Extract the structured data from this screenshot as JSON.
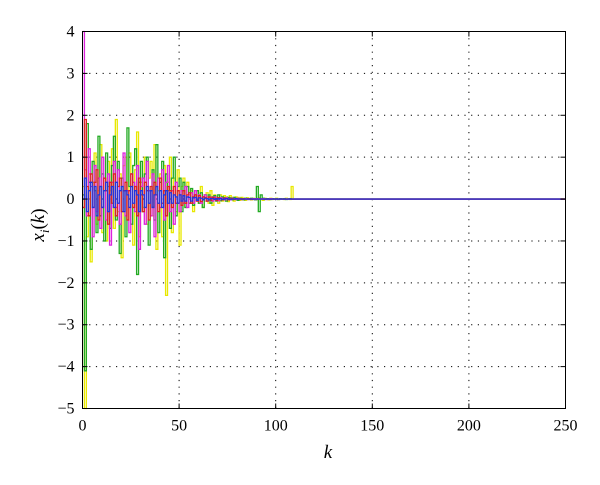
{
  "chart_data": {
    "type": "line",
    "step": true,
    "xlabel": "k",
    "ylabel": "x_i(k)",
    "xlim": [
      0,
      250
    ],
    "ylim": [
      -5,
      4
    ],
    "xticks": [
      0,
      50,
      100,
      150,
      200,
      250
    ],
    "yticks": [
      -5,
      -4,
      -3,
      -2,
      -1,
      0,
      1,
      2,
      3,
      4
    ],
    "grid": true,
    "series": [
      {
        "color": "#e8e800",
        "values": [
          0.3,
          -5.0,
          -0.9,
          0.6,
          -1.5,
          0.4,
          1.1,
          -0.6,
          0.2,
          1.3,
          -0.8,
          0.5,
          -1.0,
          0.9,
          0.2,
          1.2,
          -0.7,
          1.9,
          -0.3,
          0.6,
          -1.4,
          0.8,
          1.0,
          -0.5,
          1.1,
          0.3,
          -1.1,
          0.7,
          1.6,
          -0.9,
          0.4,
          -0.2,
          1.0,
          -0.6,
          0.5,
          0.9,
          -0.4,
          1.3,
          -1.2,
          0.2,
          0.6,
          -0.9,
          0.8,
          -2.3,
          0.4,
          1.0,
          -0.8,
          0.5,
          -0.3,
          0.7,
          -1.1,
          0.3,
          0.5,
          -0.2,
          0.4,
          -0.1,
          0.2,
          -0.3,
          0.1,
          0.2,
          -0.1,
          0.3,
          -0.2,
          0.1,
          0.15,
          -0.1,
          0.2,
          -0.15,
          0.1,
          0.05,
          -0.1,
          0.1,
          -0.05,
          0.08,
          0.05,
          -0.06,
          0.08,
          0.04,
          -0.05,
          0.05,
          0.04,
          -0.03,
          0.04,
          0.02,
          -0.03,
          0.03,
          0.01,
          -0.02,
          0.02,
          0.01,
          -0.02,
          0.03,
          0.01,
          -0.03,
          0.02,
          0.01,
          -0.02,
          0.02,
          -0.01,
          0.01,
          0.02,
          -0.01,
          0.01,
          0.01,
          -0.01,
          0.02,
          0.01,
          -0.01,
          0.3,
          0.0
        ]
      },
      {
        "color": "#22aa22",
        "values": [
          0.1,
          -4.1,
          1.8,
          0.4,
          -1.2,
          0.9,
          0.2,
          -0.8,
          1.5,
          -0.4,
          0.6,
          -1.0,
          1.1,
          0.3,
          -0.7,
          0.8,
          1.5,
          -0.5,
          0.9,
          -1.3,
          0.5,
          0.2,
          -0.9,
          1.7,
          0.3,
          -0.6,
          0.8,
          1.2,
          -1.8,
          0.4,
          0.9,
          -0.3,
          0.6,
          1.0,
          -1.1,
          0.2,
          0.7,
          -0.5,
          1.3,
          -0.8,
          0.4,
          0.9,
          -1.4,
          0.6,
          0.2,
          -0.7,
          0.5,
          1.0,
          -0.4,
          0.3,
          0.5,
          -0.3,
          0.4,
          -0.2,
          0.3,
          -0.1,
          0.25,
          -0.15,
          0.1,
          0.2,
          -0.1,
          0.15,
          -0.2,
          0.1,
          -0.05,
          0.1,
          -0.1,
          0.05,
          0.08,
          -0.05,
          0.1,
          -0.04,
          0.05,
          0.03,
          -0.05,
          0.04,
          0.03,
          -0.02,
          0.04,
          0.02,
          -0.03,
          0.02,
          0.01,
          -0.02,
          0.02,
          0.01,
          -0.01,
          0.02,
          0.0,
          -0.02,
          0.3,
          -0.3,
          0.1,
          0.02,
          -0.01,
          0.01,
          0.01,
          -0.01,
          0.01,
          0.0,
          0.01,
          -0.01,
          0.01,
          0.0,
          0.01,
          -0.01,
          0.0,
          0.01,
          0.0,
          0.0
        ]
      },
      {
        "color": "#dd22dd",
        "values": [
          4.0,
          0.7,
          -0.4,
          1.2,
          0.3,
          -0.9,
          0.8,
          -0.3,
          0.5,
          -0.7,
          1.0,
          0.2,
          -0.5,
          0.6,
          -1.1,
          0.4,
          0.9,
          -0.2,
          0.7,
          -0.6,
          0.3,
          1.1,
          -0.4,
          0.2,
          -0.8,
          0.6,
          0.4,
          -0.3,
          0.8,
          -1.2,
          0.3,
          0.5,
          -0.6,
          0.9,
          0.2,
          -0.4,
          0.6,
          -0.9,
          0.3,
          0.5,
          -0.2,
          0.7,
          -0.5,
          0.4,
          0.8,
          -0.3,
          0.2,
          -0.6,
          0.4,
          0.2,
          -0.3,
          0.2,
          -0.1,
          0.3,
          -0.2,
          0.1,
          0.15,
          -0.1,
          0.2,
          -0.05,
          0.1,
          -0.1,
          0.05,
          0.1,
          -0.05,
          0.05,
          0.04,
          -0.05,
          0.05,
          0.02,
          -0.04,
          0.03,
          0.02,
          -0.02,
          0.03,
          0.01,
          -0.02,
          0.02,
          0.01,
          -0.01,
          0.02,
          0.0,
          -0.01,
          0.01,
          0.01,
          -0.01,
          0.01,
          0.0,
          0.01,
          -0.01,
          0.01,
          0.0,
          0.0,
          0.01,
          0.0,
          -0.01,
          0.0,
          0.01,
          0.0,
          0.0,
          0.0,
          0.0,
          0.0,
          0.0,
          0.0,
          0.0,
          0.0,
          0.0,
          0.0,
          0.0
        ]
      },
      {
        "color": "#dd2222",
        "values": [
          -0.2,
          1.9,
          0.3,
          -0.4,
          0.6,
          -0.2,
          0.4,
          0.7,
          -0.5,
          0.3,
          -0.2,
          0.5,
          0.2,
          -0.6,
          0.4,
          -0.1,
          0.6,
          -0.4,
          0.3,
          0.5,
          -0.3,
          0.2,
          0.4,
          -0.5,
          0.2,
          0.6,
          -0.2,
          0.3,
          -0.4,
          0.5,
          0.1,
          -0.3,
          0.4,
          0.2,
          -0.5,
          0.3,
          -0.2,
          0.4,
          0.1,
          -0.3,
          0.5,
          -0.1,
          0.2,
          -0.4,
          0.3,
          0.2,
          -0.2,
          0.3,
          -0.1,
          0.2,
          0.1,
          -0.15,
          0.2,
          -0.1,
          0.1,
          0.15,
          -0.1,
          0.05,
          0.1,
          -0.05,
          0.08,
          -0.06,
          0.05,
          0.04,
          -0.05,
          0.05,
          -0.03,
          0.04,
          0.02,
          -0.03,
          0.03,
          0.01,
          -0.02,
          0.02,
          0.01,
          -0.02,
          0.01,
          0.01,
          -0.01,
          0.01,
          0.0,
          0.01,
          -0.01,
          0.01,
          0.0,
          0.0,
          0.01,
          -0.01,
          0.0,
          0.0,
          0.0,
          0.0,
          0.0,
          0.0,
          0.0,
          0.0,
          0.0,
          0.0,
          0.0,
          0.0,
          0.0,
          0.0,
          0.0,
          0.0,
          0.0,
          0.0,
          0.0,
          0.0,
          0.0,
          0.0
        ]
      },
      {
        "color": "#2233dd",
        "values": [
          0.0,
          0.5,
          -0.3,
          0.2,
          0.4,
          -0.2,
          0.3,
          -0.4,
          0.1,
          0.3,
          -0.2,
          0.2,
          0.4,
          -0.3,
          0.1,
          0.3,
          -0.2,
          0.4,
          -0.1,
          0.2,
          0.3,
          -0.3,
          0.2,
          0.1,
          -0.2,
          0.3,
          -0.1,
          0.2,
          0.1,
          -0.3,
          0.2,
          0.1,
          -0.2,
          0.3,
          -0.1,
          0.2,
          -0.2,
          0.1,
          0.3,
          -0.1,
          0.2,
          -0.2,
          0.1,
          0.2,
          -0.1,
          0.15,
          -0.1,
          0.1,
          0.05,
          -0.1,
          0.1,
          -0.05,
          0.08,
          -0.05,
          0.05,
          0.04,
          -0.05,
          0.03,
          0.04,
          -0.03,
          0.03,
          0.02,
          -0.02,
          0.02,
          0.01,
          -0.02,
          0.01,
          0.01,
          -0.01,
          0.01,
          0.0,
          0.01,
          -0.01,
          0.0,
          0.01,
          0.0,
          -0.01,
          0.0,
          0.0,
          0.01,
          0.0,
          0.0,
          0.0,
          0.0,
          0.0,
          0.0,
          0.0,
          0.0,
          0.0,
          0.0,
          0.0,
          0.0,
          0.0,
          0.0,
          0.0,
          0.0,
          0.0,
          0.0,
          0.0,
          0.0,
          0.0,
          0.0,
          0.0,
          0.0,
          0.0,
          0.0,
          0.0,
          0.0,
          0.0,
          0.0
        ]
      }
    ]
  }
}
